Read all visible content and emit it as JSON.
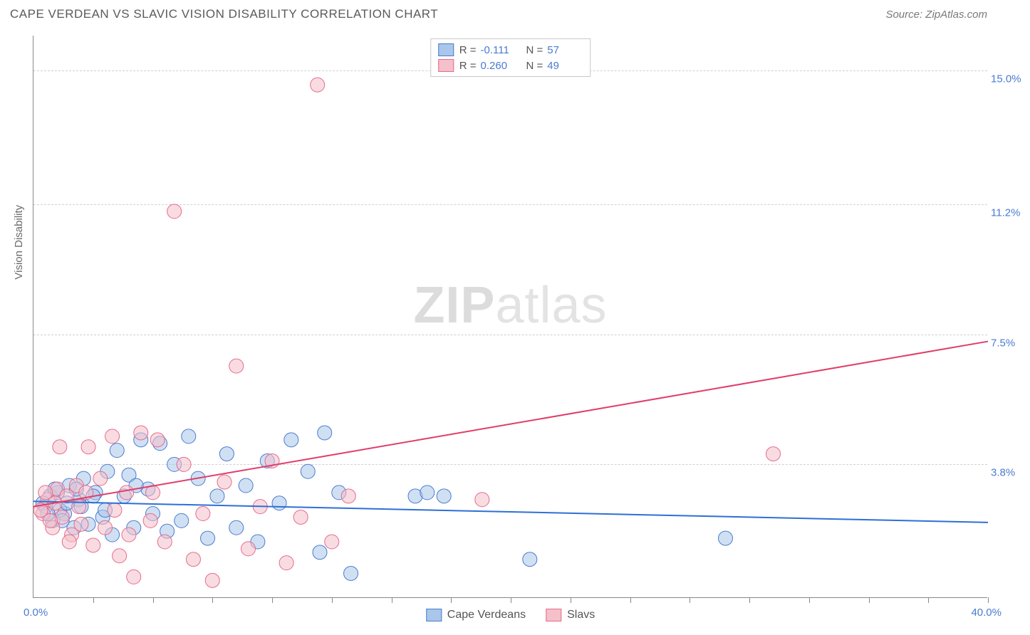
{
  "title": "CAPE VERDEAN VS SLAVIC VISION DISABILITY CORRELATION CHART",
  "source": "Source: ZipAtlas.com",
  "watermark_zip": "ZIP",
  "watermark_atlas": "atlas",
  "yaxis_title": "Vision Disability",
  "chart": {
    "type": "scatter",
    "xlim": [
      0,
      40
    ],
    "ylim": [
      0,
      16
    ],
    "yticks": [
      {
        "value": 3.8,
        "label": "3.8%"
      },
      {
        "value": 7.5,
        "label": "7.5%"
      },
      {
        "value": 11.2,
        "label": "11.2%"
      },
      {
        "value": 15.0,
        "label": "15.0%"
      }
    ],
    "xticks_minor": [
      2.5,
      5,
      7.5,
      10,
      12.5,
      15,
      17.5,
      20,
      22.5,
      25,
      27.5,
      30,
      32.5,
      35,
      37.5,
      40
    ],
    "xlabel_min": "0.0%",
    "xlabel_max": "40.0%",
    "background_color": "#ffffff",
    "grid_color": "#d0d0d0",
    "marker_radius": 10,
    "marker_opacity": 0.55,
    "series": [
      {
        "name": "Cape Verdeans",
        "fill": "#a9c7ea",
        "stroke": "#4a7bd0",
        "R": "-0.111",
        "N": "57",
        "trend": {
          "y_at_x0": 2.75,
          "y_at_xmax": 2.15,
          "color": "#2e6fd6",
          "width": 2
        },
        "points": [
          [
            0.5,
            2.6
          ],
          [
            0.7,
            2.9
          ],
          [
            0.8,
            2.2
          ],
          [
            1.0,
            3.0
          ],
          [
            1.3,
            2.4
          ],
          [
            1.5,
            3.2
          ],
          [
            1.7,
            2.0
          ],
          [
            1.9,
            2.8
          ],
          [
            2.1,
            3.4
          ],
          [
            2.3,
            2.1
          ],
          [
            2.6,
            3.0
          ],
          [
            2.9,
            2.3
          ],
          [
            3.1,
            3.6
          ],
          [
            3.3,
            1.8
          ],
          [
            3.5,
            4.2
          ],
          [
            3.8,
            2.9
          ],
          [
            4.0,
            3.5
          ],
          [
            4.2,
            2.0
          ],
          [
            4.5,
            4.5
          ],
          [
            4.8,
            3.1
          ],
          [
            5.0,
            2.4
          ],
          [
            5.3,
            4.4
          ],
          [
            5.6,
            1.9
          ],
          [
            5.9,
            3.8
          ],
          [
            6.2,
            2.2
          ],
          [
            6.5,
            4.6
          ],
          [
            6.9,
            3.4
          ],
          [
            7.3,
            1.7
          ],
          [
            7.7,
            2.9
          ],
          [
            8.1,
            4.1
          ],
          [
            8.5,
            2.0
          ],
          [
            8.9,
            3.2
          ],
          [
            9.4,
            1.6
          ],
          [
            9.8,
            3.9
          ],
          [
            10.3,
            2.7
          ],
          [
            10.8,
            4.5
          ],
          [
            11.5,
            3.6
          ],
          [
            12.0,
            1.3
          ],
          [
            12.2,
            4.7
          ],
          [
            12.8,
            3.0
          ],
          [
            13.3,
            0.7
          ],
          [
            16.0,
            2.9
          ],
          [
            16.5,
            3.0
          ],
          [
            17.2,
            2.9
          ],
          [
            20.8,
            1.1
          ],
          [
            29.0,
            1.7
          ],
          [
            1.1,
            2.5
          ],
          [
            1.4,
            2.7
          ],
          [
            1.8,
            3.1
          ],
          [
            2.0,
            2.6
          ],
          [
            2.5,
            2.9
          ],
          [
            0.4,
            2.7
          ],
          [
            0.6,
            2.4
          ],
          [
            0.9,
            3.1
          ],
          [
            1.2,
            2.2
          ],
          [
            3.0,
            2.5
          ],
          [
            4.3,
            3.2
          ]
        ]
      },
      {
        "name": "Slavs",
        "fill": "#f4c0ca",
        "stroke": "#e76a8a",
        "R": "0.260",
        "N": "49",
        "trend": {
          "y_at_x0": 2.6,
          "y_at_xmax": 7.3,
          "color": "#e03d6a",
          "width": 2
        },
        "points": [
          [
            0.4,
            2.4
          ],
          [
            0.6,
            2.8
          ],
          [
            0.8,
            2.0
          ],
          [
            1.0,
            3.1
          ],
          [
            1.2,
            2.3
          ],
          [
            1.4,
            2.9
          ],
          [
            1.6,
            1.8
          ],
          [
            1.8,
            3.2
          ],
          [
            2.0,
            2.1
          ],
          [
            2.3,
            4.3
          ],
          [
            2.5,
            1.5
          ],
          [
            2.8,
            3.4
          ],
          [
            3.0,
            2.0
          ],
          [
            3.3,
            4.6
          ],
          [
            3.6,
            1.2
          ],
          [
            3.9,
            3.0
          ],
          [
            4.2,
            0.6
          ],
          [
            4.5,
            4.7
          ],
          [
            4.9,
            2.2
          ],
          [
            5.2,
            4.5
          ],
          [
            5.5,
            1.6
          ],
          [
            5.9,
            11.0
          ],
          [
            6.3,
            3.8
          ],
          [
            6.7,
            1.1
          ],
          [
            7.1,
            2.4
          ],
          [
            7.5,
            0.5
          ],
          [
            8.0,
            3.3
          ],
          [
            8.5,
            6.6
          ],
          [
            9.0,
            1.4
          ],
          [
            9.5,
            2.6
          ],
          [
            10.0,
            3.9
          ],
          [
            10.6,
            1.0
          ],
          [
            11.2,
            2.3
          ],
          [
            11.9,
            14.6
          ],
          [
            12.5,
            1.6
          ],
          [
            13.2,
            2.9
          ],
          [
            18.8,
            2.8
          ],
          [
            31.0,
            4.1
          ],
          [
            1.1,
            4.3
          ],
          [
            1.5,
            1.6
          ],
          [
            1.9,
            2.6
          ],
          [
            2.2,
            3.0
          ],
          [
            0.3,
            2.5
          ],
          [
            0.5,
            3.0
          ],
          [
            0.7,
            2.2
          ],
          [
            0.9,
            2.7
          ],
          [
            3.4,
            2.5
          ],
          [
            4.0,
            1.8
          ],
          [
            5.0,
            3.0
          ]
        ]
      }
    ]
  },
  "legend_bottom": [
    {
      "label": "Cape Verdeans",
      "fill": "#a9c7ea",
      "stroke": "#4a7bd0"
    },
    {
      "label": "Slavs",
      "fill": "#f4c0ca",
      "stroke": "#e76a8a"
    }
  ]
}
